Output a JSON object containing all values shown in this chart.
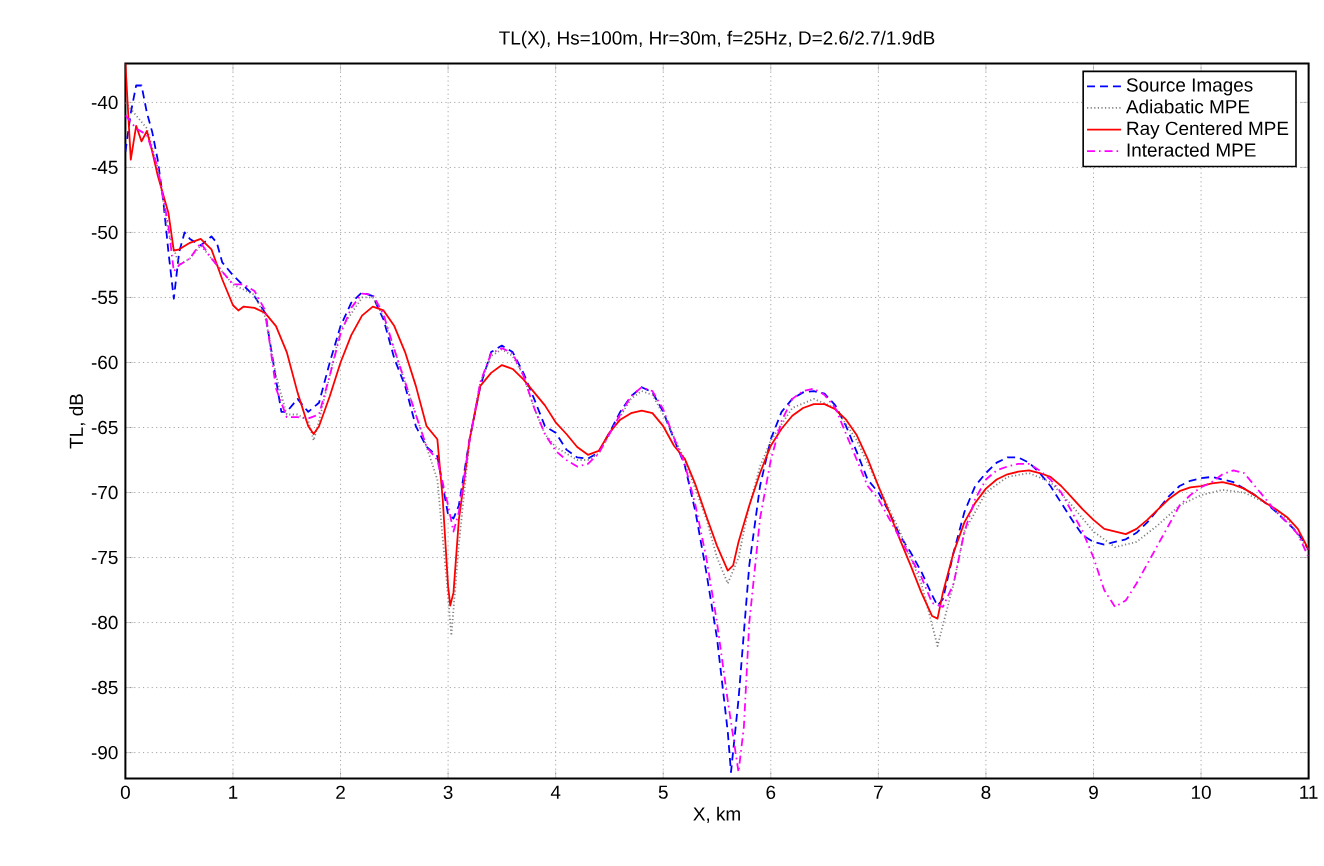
{
  "chart_data": {
    "type": "line",
    "title": "TL(X), Hs=100m, Hr=30m, f=25Hz, D=2.6/2.7/1.9dB",
    "xlabel": "X, km",
    "ylabel": "TL, dB",
    "xlim": [
      0,
      11
    ],
    "ylim": [
      -92,
      -37
    ],
    "xticks": [
      0,
      1,
      2,
      3,
      4,
      5,
      6,
      7,
      8,
      9,
      10,
      11
    ],
    "yticks": [
      -90,
      -85,
      -80,
      -75,
      -70,
      -65,
      -60,
      -55,
      -50,
      -45,
      -40
    ],
    "grid": true,
    "legend": "top right",
    "series": [
      {
        "name": "Source Images",
        "color": "#0000ff",
        "line_style": "dashed",
        "x": [
          0,
          0.05,
          0.1,
          0.15,
          0.2,
          0.25,
          0.3,
          0.35,
          0.4,
          0.45,
          0.5,
          0.55,
          0.6,
          0.7,
          0.8,
          0.85,
          0.9,
          1.0,
          1.1,
          1.2,
          1.3,
          1.4,
          1.45,
          1.5,
          1.6,
          1.7,
          1.8,
          1.9,
          2.0,
          2.1,
          2.2,
          2.3,
          2.4,
          2.5,
          2.6,
          2.7,
          2.8,
          2.9,
          3.0,
          3.05,
          3.1,
          3.2,
          3.3,
          3.4,
          3.5,
          3.6,
          3.7,
          3.8,
          3.9,
          4.0,
          4.1,
          4.2,
          4.3,
          4.4,
          4.5,
          4.6,
          4.7,
          4.8,
          4.9,
          5.0,
          5.1,
          5.2,
          5.3,
          5.4,
          5.5,
          5.6,
          5.63,
          5.7,
          5.8,
          5.9,
          6.0,
          6.1,
          6.2,
          6.3,
          6.4,
          6.5,
          6.6,
          6.7,
          6.8,
          6.9,
          7.0,
          7.1,
          7.2,
          7.3,
          7.4,
          7.5,
          7.55,
          7.6,
          7.7,
          7.8,
          7.9,
          8.0,
          8.1,
          8.2,
          8.3,
          8.4,
          8.5,
          8.6,
          8.7,
          8.8,
          8.9,
          9.0,
          9.1,
          9.2,
          9.3,
          9.4,
          9.5,
          9.6,
          9.7,
          9.8,
          9.9,
          10.0,
          10.1,
          10.2,
          10.3,
          10.4,
          10.5,
          10.6,
          10.7,
          10.8,
          10.9,
          11.0
        ],
        "values": [
          -43.8,
          -40.8,
          -38.7,
          -38.7,
          -40.8,
          -42.3,
          -44.4,
          -47.4,
          -51.5,
          -55.1,
          -51.5,
          -50,
          -50.5,
          -51,
          -50.3,
          -50.8,
          -52.3,
          -53.3,
          -54.1,
          -54.9,
          -56.2,
          -61.3,
          -63.8,
          -63.8,
          -62.8,
          -63.8,
          -63.1,
          -60,
          -57.2,
          -55.4,
          -54.6,
          -54.9,
          -56.7,
          -59.7,
          -61.8,
          -64.9,
          -66.5,
          -67.2,
          -71.7,
          -72,
          -71,
          -65.9,
          -61.8,
          -59.2,
          -58.7,
          -59.2,
          -60.8,
          -62.8,
          -64.9,
          -65.4,
          -66.7,
          -67.3,
          -67.4,
          -66.9,
          -65.4,
          -63.8,
          -62.6,
          -61.9,
          -62.3,
          -63.8,
          -65.9,
          -67.9,
          -71.5,
          -76.1,
          -81.2,
          -88.4,
          -91.5,
          -85.9,
          -75.6,
          -69.5,
          -65.9,
          -63.8,
          -62.8,
          -62.3,
          -62.2,
          -62.4,
          -63.3,
          -64.9,
          -66.9,
          -69,
          -70,
          -71.5,
          -73.3,
          -74.6,
          -76.1,
          -77.9,
          -78.7,
          -78.2,
          -74.6,
          -71.5,
          -69.5,
          -68.5,
          -67.7,
          -67.3,
          -67.3,
          -67.7,
          -68.5,
          -69.5,
          -70.8,
          -72.1,
          -73.3,
          -73.8,
          -74,
          -73.8,
          -73.6,
          -73.1,
          -72.3,
          -71.3,
          -70.3,
          -69.5,
          -69.1,
          -68.9,
          -68.8,
          -69,
          -69.2,
          -69.7,
          -70.2,
          -70.8,
          -71.5,
          -72.3,
          -73.1,
          -74.4
        ]
      },
      {
        "name": "Adiabatic MPE",
        "color": "#808080",
        "line_style": "dotted",
        "x": [
          0,
          0.1,
          0.2,
          0.3,
          0.4,
          0.5,
          0.6,
          0.7,
          0.8,
          0.9,
          1.0,
          1.2,
          1.3,
          1.4,
          1.5,
          1.6,
          1.7,
          1.75,
          1.8,
          1.9,
          2.0,
          2.2,
          2.3,
          2.4,
          2.5,
          2.6,
          2.7,
          2.8,
          2.9,
          3.0,
          3.03,
          3.1,
          3.2,
          3.3,
          3.4,
          3.5,
          3.6,
          3.7,
          3.8,
          3.9,
          4.0,
          4.2,
          4.3,
          4.4,
          4.5,
          4.7,
          4.8,
          4.9,
          5.0,
          5.2,
          5.4,
          5.5,
          5.6,
          5.7,
          5.8,
          5.9,
          6.0,
          6.2,
          6.4,
          6.6,
          6.8,
          7.0,
          7.2,
          7.4,
          7.55,
          7.7,
          7.8,
          8.0,
          8.2,
          8.4,
          8.6,
          8.8,
          9.0,
          9.2,
          9.4,
          9.6,
          9.8,
          10.0,
          10.2,
          10.4,
          10.6,
          10.8,
          11.0
        ],
        "values": [
          -40,
          -41,
          -42,
          -45,
          -50,
          -52.5,
          -52,
          -51,
          -52,
          -53,
          -54,
          -54.8,
          -56.5,
          -61,
          -64,
          -64,
          -64.5,
          -66,
          -64.5,
          -61,
          -57.5,
          -55,
          -55,
          -56.5,
          -59,
          -61.5,
          -64,
          -66.5,
          -69,
          -78,
          -81,
          -74,
          -66,
          -61.5,
          -59.5,
          -59,
          -59.5,
          -61,
          -63.5,
          -65.5,
          -66.5,
          -67.5,
          -67.5,
          -67,
          -65.5,
          -62.8,
          -62.2,
          -62.5,
          -64,
          -67.5,
          -72,
          -75,
          -77,
          -75,
          -71,
          -68,
          -66,
          -63.5,
          -62.8,
          -63.5,
          -66,
          -69.5,
          -73,
          -77,
          -81.8,
          -77,
          -73,
          -70,
          -68.8,
          -68.5,
          -69.2,
          -71,
          -73,
          -74.2,
          -73.8,
          -72.5,
          -71,
          -70.2,
          -69.8,
          -70,
          -70.8,
          -72,
          -74.5
        ]
      },
      {
        "name": "Ray Centered MPE",
        "color": "#ff0000",
        "line_style": "solid",
        "x": [
          0,
          0.05,
          0.1,
          0.15,
          0.2,
          0.25,
          0.3,
          0.4,
          0.45,
          0.5,
          0.6,
          0.7,
          0.8,
          0.9,
          1.0,
          1.05,
          1.1,
          1.2,
          1.3,
          1.4,
          1.5,
          1.6,
          1.7,
          1.75,
          1.8,
          1.9,
          2.0,
          2.1,
          2.2,
          2.3,
          2.4,
          2.5,
          2.6,
          2.7,
          2.8,
          2.9,
          2.95,
          3.0,
          3.02,
          3.05,
          3.1,
          3.2,
          3.3,
          3.4,
          3.5,
          3.6,
          3.7,
          3.8,
          3.9,
          4.0,
          4.1,
          4.2,
          4.3,
          4.4,
          4.5,
          4.6,
          4.7,
          4.8,
          4.9,
          5.0,
          5.1,
          5.2,
          5.3,
          5.4,
          5.5,
          5.6,
          5.65,
          5.7,
          5.8,
          5.9,
          6.0,
          6.1,
          6.2,
          6.3,
          6.4,
          6.5,
          6.6,
          6.7,
          6.8,
          6.9,
          7.0,
          7.1,
          7.2,
          7.3,
          7.4,
          7.5,
          7.55,
          7.6,
          7.7,
          7.8,
          7.9,
          8.0,
          8.1,
          8.2,
          8.3,
          8.4,
          8.5,
          8.6,
          8.7,
          8.8,
          8.9,
          9.0,
          9.1,
          9.2,
          9.3,
          9.4,
          9.5,
          9.6,
          9.7,
          9.8,
          9.9,
          10.0,
          10.1,
          10.2,
          10.3,
          10.4,
          10.5,
          10.6,
          10.7,
          10.8,
          10.9,
          11.0
        ],
        "values": [
          -37,
          -44.4,
          -41.8,
          -43,
          -42.2,
          -43.8,
          -45.6,
          -48.5,
          -51.4,
          -51.3,
          -50.8,
          -50.5,
          -51.3,
          -53.6,
          -55.6,
          -56,
          -55.7,
          -55.8,
          -56.2,
          -57.2,
          -59.2,
          -62.3,
          -64.9,
          -65.5,
          -64.9,
          -62.6,
          -60,
          -57.9,
          -56.4,
          -55.7,
          -56,
          -57.2,
          -59.2,
          -61.8,
          -64.9,
          -65.9,
          -70.5,
          -77.2,
          -78.7,
          -77.7,
          -72.1,
          -65.9,
          -61.8,
          -60.8,
          -60.2,
          -60.5,
          -61.3,
          -62.3,
          -63.3,
          -64.6,
          -65.5,
          -66.5,
          -67.1,
          -66.8,
          -65.4,
          -64.4,
          -63.9,
          -63.7,
          -63.9,
          -64.9,
          -66.4,
          -67.4,
          -69.4,
          -71.8,
          -74.1,
          -76,
          -75.6,
          -73.8,
          -71,
          -68.5,
          -66.4,
          -65.1,
          -64.1,
          -63.5,
          -63.2,
          -63.2,
          -63.6,
          -64.4,
          -65.6,
          -67.4,
          -69.5,
          -71.5,
          -73.6,
          -75.6,
          -77.7,
          -79.5,
          -79.7,
          -77.7,
          -74.6,
          -72.3,
          -70.8,
          -69.7,
          -69,
          -68.6,
          -68.4,
          -68.3,
          -68.5,
          -68.8,
          -69.5,
          -70.4,
          -71.3,
          -72.1,
          -72.8,
          -73,
          -73.2,
          -72.8,
          -72.1,
          -71.3,
          -70.5,
          -69.9,
          -69.6,
          -69.5,
          -69.3,
          -69.2,
          -69.4,
          -69.7,
          -70.2,
          -70.8,
          -71.3,
          -71.9,
          -72.8,
          -74.4
        ]
      },
      {
        "name": "Interacted MPE",
        "color": "#ff00ff",
        "line_style": "dashdot",
        "x": [
          0,
          0.1,
          0.2,
          0.3,
          0.4,
          0.45,
          0.5,
          0.6,
          0.7,
          0.8,
          1.0,
          1.1,
          1.2,
          1.3,
          1.4,
          1.5,
          1.6,
          1.7,
          1.8,
          1.9,
          2.0,
          2.1,
          2.2,
          2.3,
          2.4,
          2.5,
          2.6,
          2.7,
          2.8,
          2.9,
          3.0,
          3.05,
          3.1,
          3.2,
          3.3,
          3.4,
          3.5,
          3.6,
          3.7,
          3.8,
          3.9,
          4.0,
          4.1,
          4.2,
          4.3,
          4.4,
          4.5,
          4.6,
          4.7,
          4.8,
          4.9,
          5.0,
          5.1,
          5.2,
          5.3,
          5.4,
          5.5,
          5.6,
          5.7,
          5.75,
          5.8,
          5.9,
          6.0,
          6.1,
          6.2,
          6.3,
          6.4,
          6.5,
          6.6,
          6.7,
          6.8,
          6.9,
          7.0,
          7.1,
          7.2,
          7.3,
          7.4,
          7.5,
          7.6,
          7.7,
          7.8,
          7.9,
          8.0,
          8.1,
          8.2,
          8.3,
          8.4,
          8.5,
          8.6,
          8.7,
          8.8,
          8.9,
          9.0,
          9.1,
          9.2,
          9.3,
          9.4,
          9.5,
          9.6,
          9.7,
          9.8,
          9.9,
          10.0,
          10.1,
          10.2,
          10.3,
          10.4,
          10.5,
          10.6,
          10.7,
          10.8,
          10.9,
          11.0
        ],
        "values": [
          -41,
          -42,
          -42.5,
          -45,
          -49.5,
          -53,
          -52.5,
          -52,
          -50.8,
          -52,
          -54,
          -54,
          -54.5,
          -56,
          -62,
          -64.2,
          -64.2,
          -64.3,
          -64,
          -61,
          -57.8,
          -55.8,
          -54.7,
          -54.8,
          -56.3,
          -59,
          -61.5,
          -64,
          -66.5,
          -67.5,
          -71,
          -73,
          -71.5,
          -66,
          -61.5,
          -59.3,
          -58.9,
          -59.3,
          -61,
          -63.5,
          -65.5,
          -66.8,
          -67.5,
          -68,
          -67.8,
          -67,
          -65.5,
          -64,
          -62.6,
          -61.9,
          -62.2,
          -63.6,
          -65.8,
          -67.8,
          -71,
          -75,
          -80,
          -86,
          -91.5,
          -88,
          -80,
          -72,
          -67.5,
          -64.5,
          -62.8,
          -62.2,
          -62,
          -62.5,
          -63.5,
          -65.5,
          -67.5,
          -69.5,
          -70.5,
          -72,
          -73.5,
          -75,
          -76.5,
          -78.5,
          -78.8,
          -77,
          -73,
          -70.5,
          -69,
          -68.3,
          -68,
          -67.8,
          -67.8,
          -68.3,
          -69,
          -70,
          -71.5,
          -73,
          -75,
          -77.5,
          -78.8,
          -78.3,
          -77,
          -75.5,
          -74,
          -72.5,
          -71,
          -70.2,
          -69.6,
          -69.2,
          -68.6,
          -68.3,
          -68.5,
          -69.5,
          -70.5,
          -71.5,
          -72.3,
          -73.2,
          -75
        ]
      }
    ]
  }
}
